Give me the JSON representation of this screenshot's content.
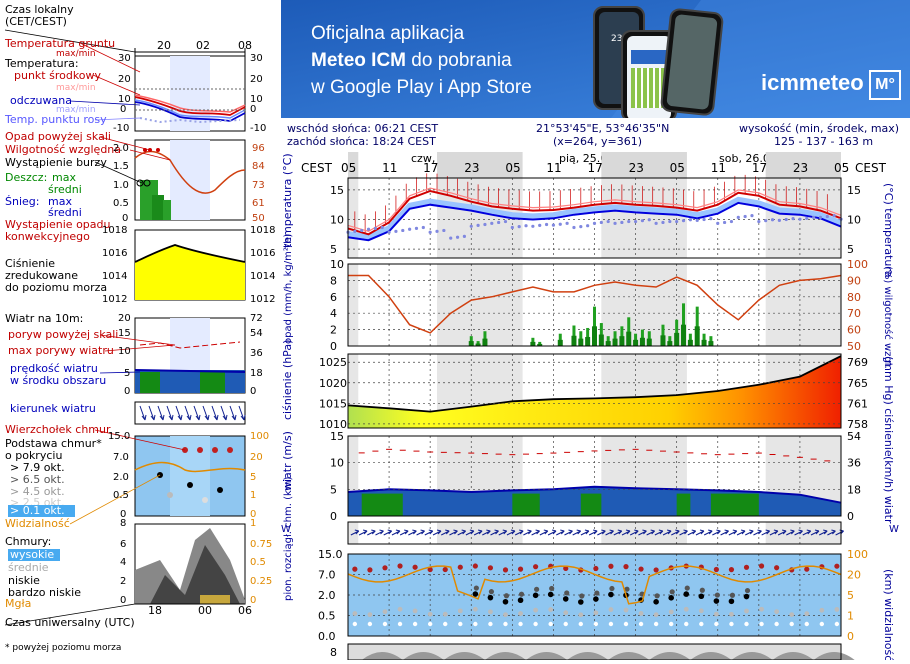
{
  "legend": {
    "time_local": "Czas lokalny\n(CET/CEST)",
    "time_local_ticks": [
      "20",
      "02",
      "08"
    ],
    "soil_temp": "Temperatura gruntu",
    "soil_temp_sub": "max/min",
    "temp_label": "Temperatura:",
    "temp_mid": "punkt środkowy",
    "temp_maxmin": "max/min",
    "temp_feel": "odczuwana",
    "temp_feel_sub": "max/min",
    "temp_dew": "Temp. punktu rosy",
    "temp_left_ticks": [
      "30",
      "20",
      "10",
      "0",
      "-10"
    ],
    "temp_right_ticks": [
      "30",
      "20",
      "10",
      "0",
      "-10"
    ],
    "precip_threshold": "Opad powyżej skali",
    "humidity": "Wilgotność względna",
    "storm": "Wystąpienie burzy",
    "rain_label": "Deszcz:",
    "rain_max": "max",
    "rain_avg": "średni",
    "snow_label": "Śnieg:",
    "snow_max": "max",
    "snow_avg": "średni",
    "conv_precip": "Wystąpienie opadu\nkonwekcyjnego",
    "precip_ticks": [
      "2.0",
      "1.5",
      "1.0",
      "0.5",
      "0"
    ],
    "hum_ticks": [
      "96",
      "84",
      "73",
      "61",
      "50"
    ],
    "pressure_label": "Ciśnienie\nzredukowane\ndo poziomu morza",
    "pressure_ticks": [
      "1018",
      "1016",
      "1014",
      "1012"
    ],
    "wind_label": "Wiatr na 10m:",
    "wind_gust_scale": "poryw powyżej skali",
    "wind_gust_max": "max porywy wiatru",
    "wind_speed": "prędkość wiatru\nw środku obszaru",
    "wind_left_ticks": [
      "20",
      "15",
      "10",
      "5",
      "0"
    ],
    "wind_right_ticks": [
      "72",
      "54",
      "36",
      "18",
      "0"
    ],
    "wind_dir": "kierunek wiatru",
    "cloud_top": "Wierzchołek chmur",
    "cloud_base": "Podstawa chmur*\no pokryciu",
    "okt1": "> 7.9 okt.",
    "okt2": "> 6.5 okt.",
    "okt3": "> 4.5 okt.",
    "okt4": "> 2.5 okt.",
    "okt5": "> 0.1 okt.",
    "cloud_left_ticks": [
      "15.0",
      "7.0",
      "2.0",
      "0.5",
      "0"
    ],
    "cloud_right_ticks": [
      "100",
      "20",
      "5",
      "1",
      "0"
    ],
    "visibility": "Widzialność",
    "clouds_label": "Chmury:",
    "cl_high": "wysokie",
    "cl_mid": "średnie",
    "cl_low": "niskie",
    "cl_vlow": "bardzo niskie",
    "fog": "Mgła",
    "clouds_left_ticks": [
      "8",
      "6",
      "4",
      "2",
      "0"
    ],
    "clouds_right_ticks": [
      "1",
      "0.75",
      "0.5",
      "0.25",
      "0"
    ],
    "utc_ticks": [
      "18",
      "00",
      "06"
    ],
    "utc_label": "Czas uniwersalny (UTC)",
    "footnote": "* powyżej poziomu morza"
  },
  "banner": {
    "line1": "Oficjalna aplikacja",
    "line2_bold": "Meteo ICM",
    "line2_rest": " do pobrania",
    "line3": "w Google Play i App Store",
    "logo_text": "icmmeteo",
    "logo_badge": "M°",
    "phone_temp": "23°"
  },
  "info": {
    "sunrise": "wschód słońca: 06:21 CEST",
    "sunset": "zachód słońca: 18:24 CEST",
    "coords": "21°53'45\"E, 53°46'35\"N",
    "grid": "(x=264,  y=361)",
    "alt_label": "wysokość (min, środek, max)",
    "alt_values": "125 - 137 - 163 m"
  },
  "main": {
    "tz": "CEST",
    "days": [
      "czw, 24.09",
      "pią, 25.09",
      "sob, 26.09"
    ],
    "hour_ticks": [
      "05",
      "11",
      "17",
      "23",
      "05",
      "11",
      "17",
      "23",
      "05",
      "11",
      "17",
      "23",
      "05"
    ],
    "temp_axis_left": "temperatura\n(°C)",
    "temp_axis_right": "(°C)\ntemperatura",
    "temp_ticks": [
      "15",
      "10",
      "5"
    ],
    "precip_axis_left": "opad\n(mm/h, kg/m²/h)",
    "precip_axis_right": "(%)\nwilgotność wzgl.",
    "precip_ticks": [
      "10",
      "8",
      "6",
      "4",
      "2",
      "0"
    ],
    "hum_ticks": [
      "100",
      "90",
      "80",
      "70",
      "60",
      "50"
    ],
    "press_axis_left": "ciśnienie\n(hPa)",
    "press_axis_right": "(mm Hg)\nciśnienie",
    "press_ticks": [
      "1025",
      "1020",
      "1015",
      "1010"
    ],
    "press_mm_ticks": [
      "769",
      "765",
      "761",
      "758"
    ],
    "wind_axis_left": "wiatr\n(m/s)",
    "wind_axis_right": "(km/h)\nwiatr",
    "wind_ticks": [
      "15",
      "10",
      "5",
      "0"
    ],
    "wind_kmh_ticks": [
      "54",
      "36",
      "18",
      "0"
    ],
    "cloud_axis_left": "pion. rozciągł. chm.\n(km)",
    "cloud_axis_right": "(km)\nwidzialność",
    "cloud_ticks": [
      "15.0",
      "7.0",
      "2.0",
      "0.5",
      "0.0"
    ],
    "vis_ticks": [
      "100",
      "20",
      "5",
      "1",
      "0"
    ],
    "last_tick": "8"
  },
  "chart_data": [
    {
      "type": "line",
      "title": "temperatura",
      "ylabel": "(°C)",
      "x_hours": [
        0,
        3,
        6,
        9,
        12,
        15,
        18,
        21,
        24,
        27,
        30,
        33,
        36,
        39,
        42,
        45,
        48,
        51,
        54,
        57,
        60,
        63,
        66,
        69,
        72
      ],
      "series": [
        {
          "values": [
            8.5,
            7.5,
            9.5,
            13.5,
            14.8,
            14.0,
            13.0,
            12.2,
            11.8,
            11.5,
            11.6,
            12.0,
            12.5,
            12.8,
            12.5,
            12.3,
            12.0,
            11.5,
            12.5,
            14.5,
            14.0,
            12.5,
            12.2,
            11.5,
            10.2
          ]
        },
        {
          "values": [
            7.0,
            6.5,
            8.0,
            11.8,
            12.5,
            12.0,
            11.5,
            10.8,
            10.2,
            10.0,
            10.2,
            10.8,
            11.2,
            11.5,
            11.2,
            11.0,
            10.8,
            10.2,
            11.0,
            12.8,
            12.2,
            11.0,
            10.8,
            10.2,
            8.8
          ]
        },
        {
          "values": [
            8.0,
            8.5,
            8.0,
            8.5,
            8.0,
            7.0,
            9.0,
            9.5,
            8.8,
            9.0,
            9.2,
            8.8,
            9.5,
            9.5,
            9.8,
            9.5,
            9.8,
            10.0,
            9.5,
            10.5,
            9.8,
            10.0,
            10.2,
            10.5,
            10.2
          ]
        }
      ],
      "ylim": [
        3.5,
        17
      ]
    },
    {
      "type": "line",
      "title": "wilgotność wzgl.",
      "ylabel": "(%)",
      "x_hours": [
        0,
        3,
        6,
        9,
        12,
        15,
        18,
        21,
        24,
        27,
        30,
        33,
        36,
        39,
        42,
        45,
        48,
        51,
        54,
        57,
        60,
        63,
        66,
        69,
        72
      ],
      "series": [
        {
          "values": [
            93,
            93,
            80,
            63,
            58,
            70,
            78,
            80,
            83,
            86,
            83,
            83,
            87,
            89,
            87,
            86,
            92,
            87,
            75,
            66,
            78,
            87,
            90,
            91,
            93
          ]
        }
      ],
      "ylim": [
        50,
        100
      ]
    },
    {
      "type": "line",
      "title": "ciśnienie",
      "ylabel": "(hPa)",
      "x_hours": [
        0,
        6,
        12,
        18,
        24,
        30,
        36,
        42,
        48,
        54,
        60,
        66,
        72
      ],
      "series": [
        {
          "values": [
            1014.5,
            1013.8,
            1013.0,
            1014.2,
            1015.5,
            1016.0,
            1016.2,
            1016.5,
            1017.0,
            1018.0,
            1019.5,
            1021.5,
            1026.5
          ]
        }
      ],
      "ylim": [
        1009,
        1027
      ]
    },
    {
      "type": "area",
      "title": "wiatr",
      "ylabel": "(m/s)",
      "x_hours": [
        0,
        6,
        12,
        18,
        24,
        30,
        36,
        42,
        48,
        54,
        60,
        66,
        72
      ],
      "series": [
        {
          "values": [
            4.5,
            5.0,
            4.8,
            4.5,
            4.8,
            5.0,
            5.5,
            5.2,
            5.0,
            4.8,
            4.5,
            4.0,
            2.5
          ]
        },
        {
          "values": [
            11.5,
            12.5,
            12.0,
            11.8,
            11.5,
            11.8,
            12.2,
            12.5,
            12.0,
            11.5,
            11.8,
            11.0,
            10.0
          ]
        }
      ],
      "ylim": [
        0,
        15
      ]
    }
  ]
}
